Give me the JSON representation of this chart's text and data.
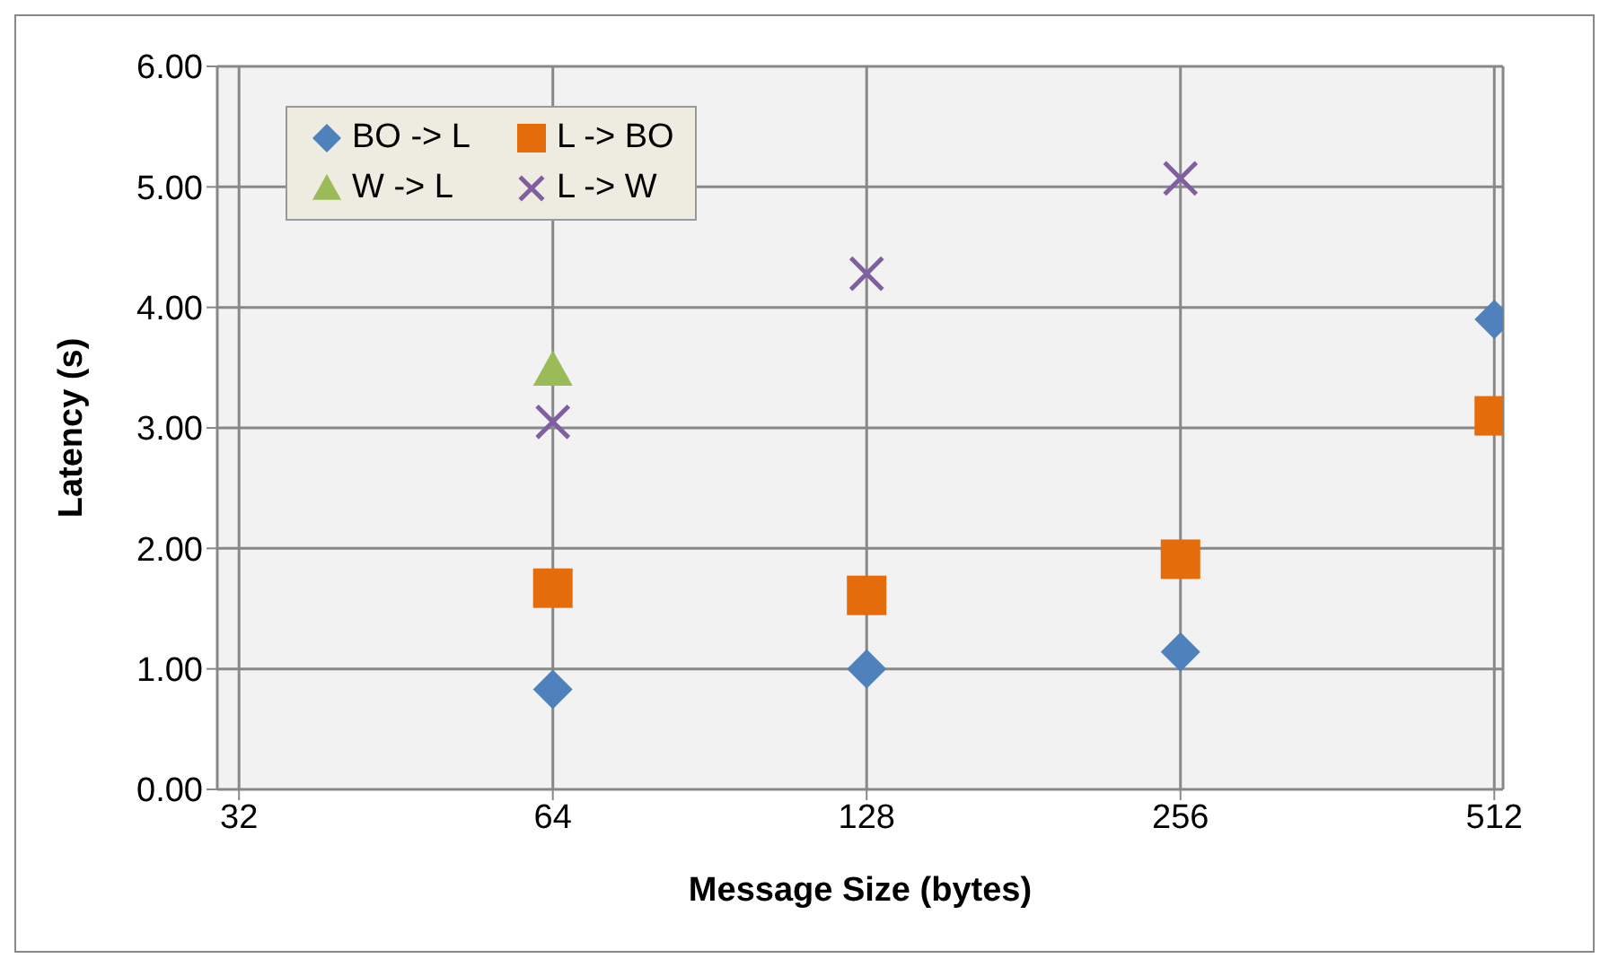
{
  "chart_data": {
    "type": "scatter",
    "xlabel": "Message Size (bytes)",
    "ylabel": "Latency (s)",
    "log": "x",
    "xlim": [
      30.5,
      522
    ],
    "xticks": [
      32,
      64,
      128,
      256,
      512
    ],
    "ylim": [
      0,
      6
    ],
    "yticks": [
      {
        "value": 0,
        "label": "0.00"
      },
      {
        "value": 1,
        "label": "1.00"
      },
      {
        "value": 2,
        "label": "2.00"
      },
      {
        "value": 3,
        "label": "3.00"
      },
      {
        "value": 4,
        "label": "4.00"
      },
      {
        "value": 5,
        "label": "5.00"
      },
      {
        "value": 6,
        "label": "6.00"
      }
    ],
    "grid": true,
    "legend": "top left",
    "series": [
      {
        "name": "BO -> L",
        "color": "#4f81bd",
        "marker": "diamond",
        "x": [
          64,
          128,
          256,
          512
        ],
        "values": [
          0.83,
          1.0,
          1.14,
          3.9
        ]
      },
      {
        "name": "L -> BO",
        "color": "#e46c0a",
        "marker": "square",
        "x": [
          64,
          128,
          256,
          512
        ],
        "values": [
          1.67,
          1.61,
          1.91,
          3.1
        ]
      },
      {
        "name": "W -> L",
        "color": "#9bbb59",
        "marker": "triangle",
        "x": [
          64
        ],
        "values": [
          3.48
        ]
      },
      {
        "name": "L -> W",
        "color": "#7f5f9f",
        "marker": "cross",
        "x": [
          64,
          128,
          256
        ],
        "values": [
          3.05,
          4.28,
          5.07
        ]
      }
    ]
  }
}
